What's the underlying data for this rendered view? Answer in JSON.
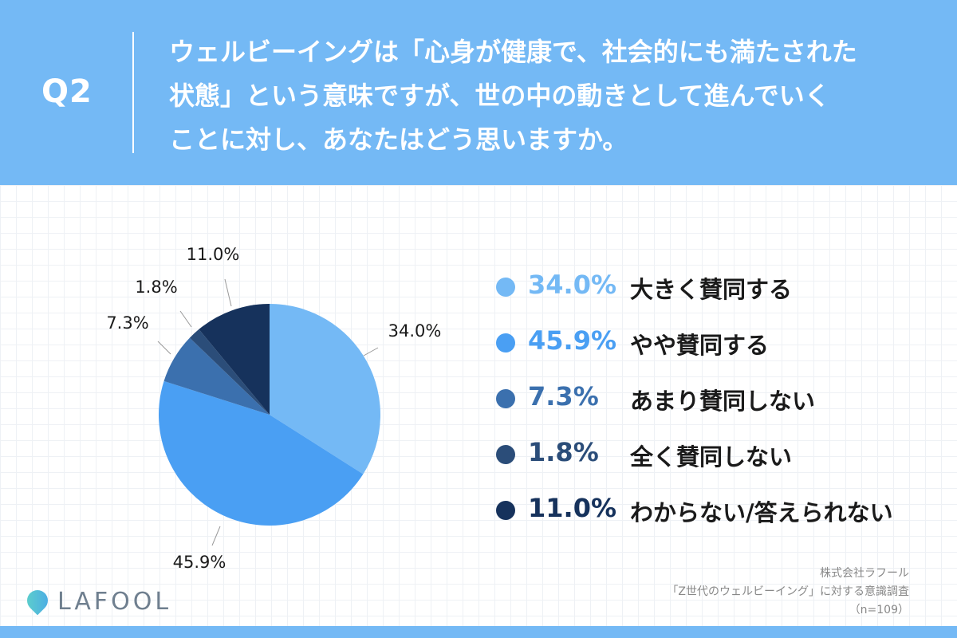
{
  "question": {
    "label": "Q2",
    "text": "ウェルビーイングは「心身が健康で、社会的にも満たされた\n状態」という意味ですが、世の中の動きとして進んでいく\nことに対し、あなたはどう思いますか。"
  },
  "chart_data": {
    "type": "pie",
    "start_angle": "12 o'clock",
    "direction": "clockwise",
    "slices": [
      {
        "label": "大きく賛同する",
        "value": 34.0,
        "display": "34.0%",
        "color": "#74b9f5"
      },
      {
        "label": "やや賛同する",
        "value": 45.9,
        "display": "45.9%",
        "color": "#4a9ff3"
      },
      {
        "label": "あまり賛同しない",
        "value": 7.3,
        "display": "7.3%",
        "color": "#3b70ae"
      },
      {
        "label": "全く賛同しない",
        "value": 1.8,
        "display": "1.8%",
        "color": "#2b4d79"
      },
      {
        "label": "わからない/答えられない",
        "value": 11.0,
        "display": "11.0%",
        "color": "#16325c"
      }
    ],
    "legend_position": "right"
  },
  "source": {
    "company": "株式会社ラフール",
    "survey": "「Z世代のウェルビーイング」に対する意識調査",
    "n": "（n=109）"
  },
  "logo": {
    "text": "LAFOOL"
  }
}
